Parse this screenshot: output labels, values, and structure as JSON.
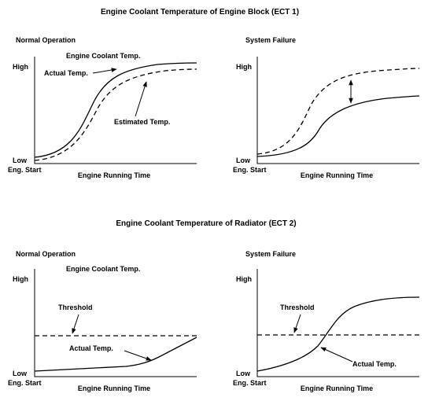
{
  "sections": [
    {
      "title": "Engine Coolant Temperature of Engine Block (ECT 1)",
      "panels": [
        {
          "heading": "Normal Operation",
          "curve_title": "Engine Coolant Temp.",
          "y_high": "High",
          "y_low": "Low",
          "x_start": "Eng. Start",
          "x_label": "Engine Running Time",
          "annotations": [
            "Actual Temp.",
            "Estimated Temp."
          ]
        },
        {
          "heading": "System Failure",
          "y_high": "High",
          "y_low": "Low",
          "x_start": "Eng. Start",
          "x_label": "Engine Running Time"
        }
      ]
    },
    {
      "title": "Engine Coolant Temperature of Radiator (ECT 2)",
      "panels": [
        {
          "heading": "Normal Operation",
          "curve_title": "Engine Coolant Temp.",
          "y_high": "High",
          "y_low": "Low",
          "x_start": "Eng. Start",
          "x_label": "Engine Running Time",
          "annotations": [
            "Threshold",
            "Actual Temp."
          ]
        },
        {
          "heading": "System Failure",
          "y_high": "High",
          "y_low": "Low",
          "x_start": "Eng. Start",
          "x_label": "Engine Running Time",
          "annotations": [
            "Threshold",
            "Actual Temp."
          ]
        }
      ]
    }
  ]
}
